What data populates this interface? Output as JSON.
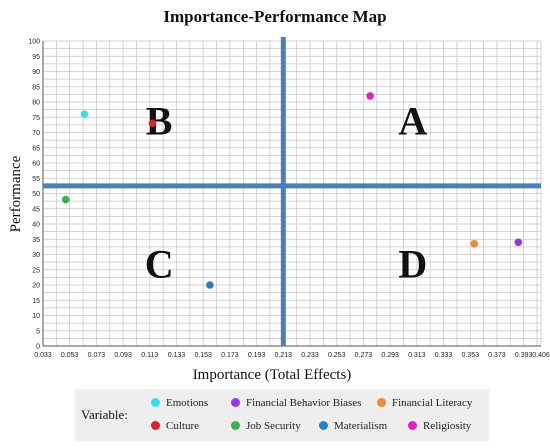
{
  "chart_data": {
    "type": "scatter",
    "title": "Importance-Performance Map",
    "xlabel": "Importance (Total Effects)",
    "ylabel": "Performance",
    "xlim": [
      0.033,
      0.406
    ],
    "ylim": [
      0,
      100
    ],
    "x_ticks": [
      "0.033",
      "0.053",
      "0.073",
      "0.093",
      "0.113",
      "0.133",
      "0.153",
      "0.173",
      "0.193",
      "0.213",
      "0.233",
      "0.253",
      "0.273",
      "0.293",
      "0.313",
      "0.333",
      "0.353",
      "0.373",
      "0.393",
      "0.406"
    ],
    "y_ticks": [
      "0",
      "5",
      "10",
      "15",
      "20",
      "25",
      "30",
      "35",
      "40",
      "45",
      "50",
      "55",
      "60",
      "65",
      "70",
      "75",
      "80",
      "85",
      "90",
      "95",
      "100"
    ],
    "grid": true,
    "reference_lines": {
      "x": 0.213,
      "y": 52.5
    },
    "quadrant_labels": [
      {
        "label": "A",
        "x": 0.31,
        "y": 74
      },
      {
        "label": "B",
        "x": 0.12,
        "y": 74
      },
      {
        "label": "C",
        "x": 0.12,
        "y": 27
      },
      {
        "label": "D",
        "x": 0.31,
        "y": 27
      }
    ],
    "legend_title": "Variable:",
    "legend_position": "bottom",
    "series": [
      {
        "name": "Emotions",
        "color": "#33e0f0",
        "x": 0.064,
        "y": 76
      },
      {
        "name": "Financial Behavior Biases",
        "color": "#9933ee",
        "x": 0.389,
        "y": 34
      },
      {
        "name": "Financial Literacy",
        "color": "#ef8a2e",
        "x": 0.356,
        "y": 33.5
      },
      {
        "name": "Culture",
        "color": "#e0202a",
        "x": 0.115,
        "y": 73
      },
      {
        "name": "Job Security",
        "color": "#3cb04a",
        "x": 0.05,
        "y": 48
      },
      {
        "name": "Materialism",
        "color": "#2a7fc4",
        "x": 0.158,
        "y": 20
      },
      {
        "name": "Religiosity",
        "color": "#e61ec0",
        "x": 0.278,
        "y": 82
      }
    ]
  }
}
